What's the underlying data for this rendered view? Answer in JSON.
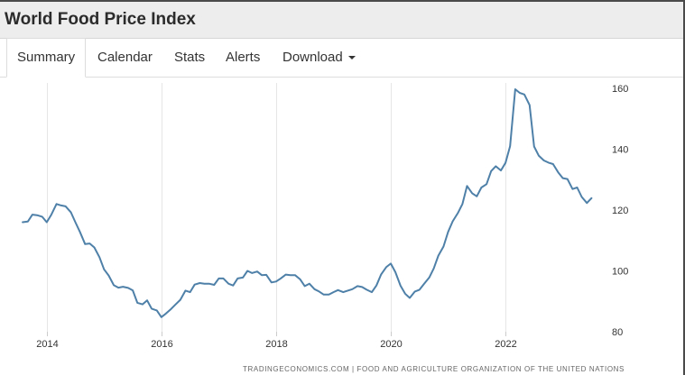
{
  "header": {
    "title": "World Food Price Index"
  },
  "tabs": [
    {
      "label": "Summary",
      "active": true
    },
    {
      "label": "Calendar",
      "active": false
    },
    {
      "label": "Stats",
      "active": false
    },
    {
      "label": "Alerts",
      "active": false
    },
    {
      "label": "Download",
      "active": false,
      "dropdown": true
    }
  ],
  "source": "TRADINGECONOMICS.COM | FOOD AND AGRICULTURE ORGANIZATION OF THE UNITED NATIONS",
  "colors": {
    "line": "#4e80a8",
    "grid": "#e6e6e6",
    "header_bg": "#ededed"
  },
  "chart_data": {
    "type": "line",
    "title": "",
    "xlabel": "",
    "ylabel": "",
    "x_ticks": [
      2014,
      2016,
      2018,
      2020,
      2022
    ],
    "y_ticks": [
      80,
      100,
      120,
      140,
      160
    ],
    "ylim": [
      80,
      160
    ],
    "grid": "vertical",
    "y_axis_side": "right",
    "series": [
      {
        "x": [
          2013.58,
          2013.67,
          2013.75,
          2013.83,
          2013.92,
          2014.0,
          2014.08,
          2014.17,
          2014.25,
          2014.33,
          2014.42,
          2014.5,
          2014.58,
          2014.67,
          2014.75,
          2014.83,
          2014.92,
          2015.0,
          2015.08,
          2015.17,
          2015.25,
          2015.33,
          2015.42,
          2015.5,
          2015.58,
          2015.67,
          2015.75,
          2015.83,
          2015.92,
          2016.0,
          2016.08,
          2016.17,
          2016.25,
          2016.33,
          2016.42,
          2016.5,
          2016.58,
          2016.67,
          2016.75,
          2016.83,
          2016.92,
          2017.0,
          2017.08,
          2017.17,
          2017.25,
          2017.33,
          2017.42,
          2017.5,
          2017.58,
          2017.67,
          2017.75,
          2017.83,
          2017.92,
          2018.0,
          2018.08,
          2018.17,
          2018.25,
          2018.33,
          2018.42,
          2018.5,
          2018.58,
          2018.67,
          2018.75,
          2018.83,
          2018.92,
          2019.0,
          2019.08,
          2019.17,
          2019.25,
          2019.33,
          2019.42,
          2019.5,
          2019.58,
          2019.67,
          2019.75,
          2019.83,
          2019.92,
          2020.0,
          2020.08,
          2020.17,
          2020.25,
          2020.33,
          2020.42,
          2020.5,
          2020.58,
          2020.67,
          2020.75,
          2020.83,
          2020.92,
          2021.0,
          2021.08,
          2021.17,
          2021.25,
          2021.33,
          2021.42,
          2021.5,
          2021.58,
          2021.67,
          2021.75,
          2021.83,
          2021.92,
          2022.0,
          2022.08,
          2022.17,
          2022.25,
          2022.33,
          2022.42,
          2022.5,
          2022.58,
          2022.67,
          2022.75,
          2022.83,
          2022.92,
          2023.0,
          2023.08,
          2023.17,
          2023.25,
          2023.33,
          2023.42,
          2023.5
        ],
        "y": [
          116,
          116.2,
          118.5,
          118.3,
          117.8,
          116,
          118.5,
          122,
          121.5,
          121.2,
          119.3,
          116,
          112.8,
          108.8,
          109,
          107.7,
          104.5,
          100.5,
          98.5,
          95.3,
          94.5,
          94.8,
          94.4,
          93.6,
          89.5,
          89,
          90.3,
          87.6,
          87,
          84.8,
          86,
          87.5,
          89,
          90.5,
          93.5,
          93,
          95.5,
          96,
          95.8,
          95.8,
          95.4,
          97.5,
          97.5,
          95.8,
          95.2,
          97.5,
          97.8,
          100,
          99.3,
          99.8,
          98.6,
          98.7,
          96.2,
          96.5,
          97.5,
          98.8,
          98.6,
          98.6,
          97.2,
          95,
          95.8,
          94,
          93.2,
          92.2,
          92.2,
          93,
          93.7,
          93,
          93.5,
          94,
          95,
          94.7,
          93.8,
          93,
          95.2,
          98.8,
          101.2,
          102.4,
          99.6,
          95.1,
          92.5,
          91.1,
          93.2,
          93.8,
          95.7,
          97.8,
          100.8,
          105,
          108,
          112.8,
          116.3,
          119,
          122,
          127.9,
          125.5,
          124.5,
          127.4,
          128.5,
          132.8,
          134.4,
          133,
          135.5,
          141,
          159.7,
          158.5,
          158,
          154.5,
          140.9,
          137.9,
          136.3,
          135.6,
          135.1,
          132.4,
          130.5,
          130.2,
          126.9,
          127.4,
          124.3,
          122.3,
          123.9
        ]
      }
    ]
  }
}
